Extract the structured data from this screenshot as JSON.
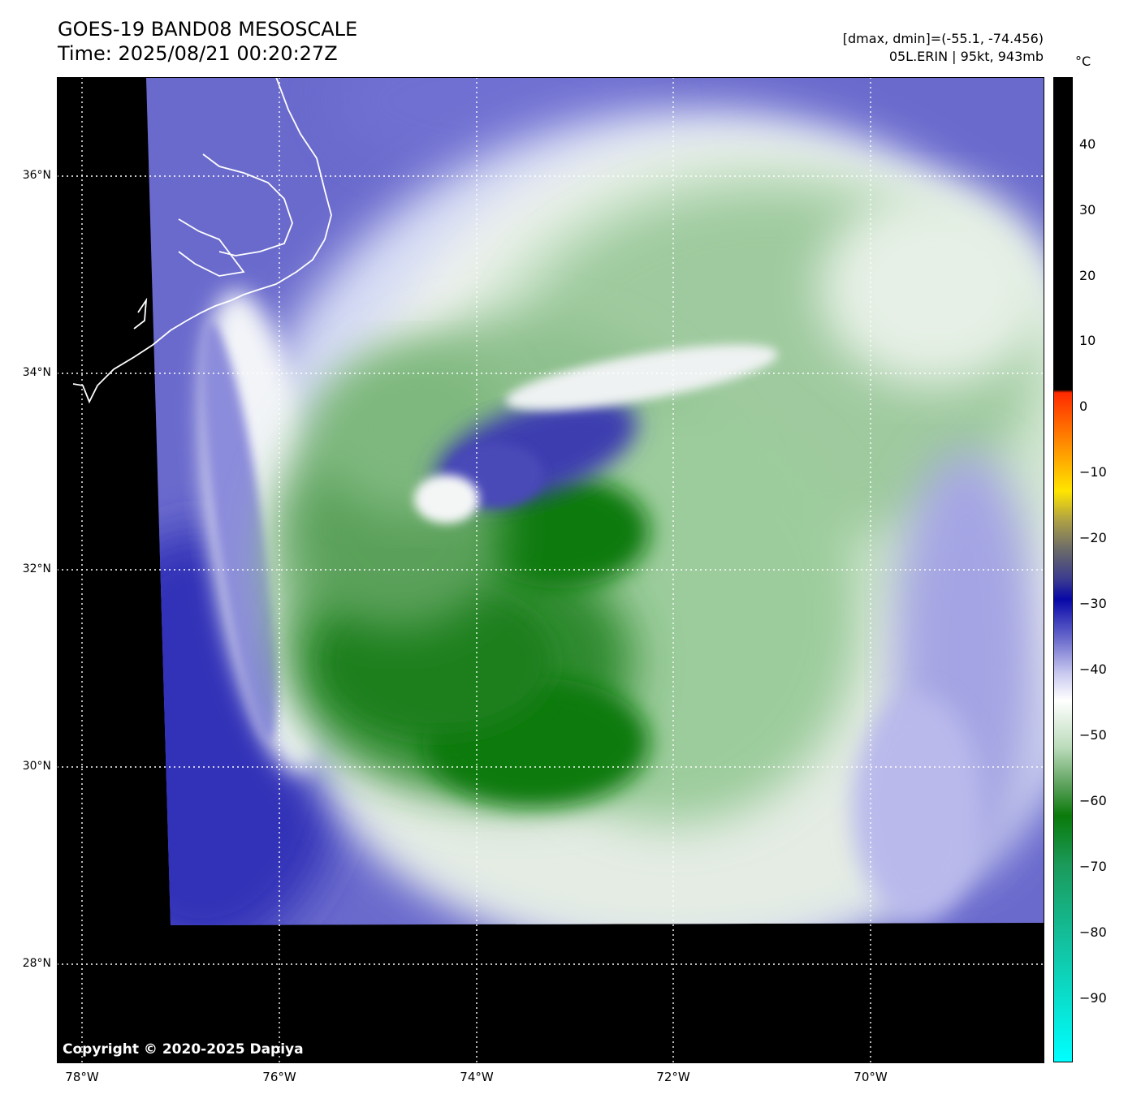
{
  "header": {
    "title_line1": "GOES-19 BAND08 MESOSCALE",
    "title_line2": "Time: 2025/08/21 00:20:27Z",
    "info_line1": "[dmax, dmin]=(-55.1, -74.456)",
    "info_line2": "05L.ERIN | 95kt, 943mb"
  },
  "axes": {
    "x_ticks": [
      "78°W",
      "76°W",
      "74°W",
      "72°W",
      "70°W"
    ],
    "y_ticks": [
      "36°N",
      "34°N",
      "32°N",
      "30°N",
      "28°N"
    ]
  },
  "colorbar": {
    "unit": "°C",
    "ticks": [
      "40",
      "30",
      "20",
      "10",
      "0",
      "−10",
      "−20",
      "−30",
      "−40",
      "−50",
      "−60",
      "−70",
      "−80",
      "−90"
    ]
  },
  "footer": {
    "copyright": "Copyright © 2020-2025 Dapiya"
  },
  "colors": {
    "background_no_data": "#000000",
    "grid_lines": "#ffffff",
    "coastline": "#ffffff",
    "cold_cloud_green": "#0a7a0a",
    "moist_white": "#ffffff",
    "dry_blue": "#3a3ab8"
  }
}
